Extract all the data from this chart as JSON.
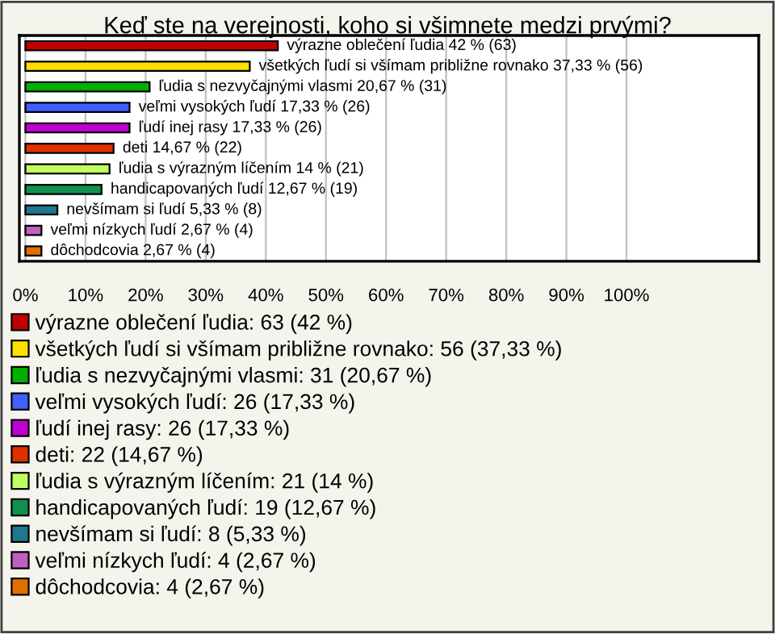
{
  "chart_data": {
    "type": "bar",
    "orientation": "horizontal",
    "title": "Keď ste na verejnosti, koho si všimnete medzi prvými?",
    "categories": [
      null,
      null,
      null,
      null,
      null,
      null,
      null,
      null,
      null,
      null,
      null
    ],
    "xlim": [
      -1,
      122
    ],
    "xticks": [
      {
        "value": 0,
        "label": "0%"
      },
      {
        "value": 10,
        "label": "10%"
      },
      {
        "value": 20,
        "label": "20%"
      },
      {
        "value": 30,
        "label": "30%"
      },
      {
        "value": 40,
        "label": "40%"
      },
      {
        "value": 50,
        "label": "50%"
      },
      {
        "value": 60,
        "label": "60%"
      },
      {
        "value": 70,
        "label": "70%"
      },
      {
        "value": 80,
        "label": "80%"
      },
      {
        "value": 90,
        "label": "90%"
      },
      {
        "value": 100,
        "label": "100%"
      }
    ],
    "grid": "x",
    "legend": "bottom",
    "series": [
      {
        "name": "výrazne oblečení ľudia: 63 (42 %)",
        "color": "#c00000",
        "values": [
          42,
          null,
          null,
          null,
          null,
          null,
          null,
          null,
          null,
          null,
          null
        ],
        "value_labels": [
          "výrazne oblečení ľudia 42 % (63)",
          null,
          null,
          null,
          null,
          null,
          null,
          null,
          null,
          null,
          null
        ]
      },
      {
        "name": "všetkých ľudí si všímam približne rovnako: 56 (37,33 %)",
        "color": "#ffe000",
        "values": [
          null,
          37.33,
          null,
          null,
          null,
          null,
          null,
          null,
          null,
          null,
          null
        ],
        "value_labels": [
          null,
          "všetkých ľudí si všímam približne rovnako 37,33 % (56)",
          null,
          null,
          null,
          null,
          null,
          null,
          null,
          null,
          null
        ]
      },
      {
        "name": "ľudia s nezvyčajnými vlasmi: 31 (20,67 %)",
        "color": "#00b000",
        "values": [
          null,
          null,
          20.67,
          null,
          null,
          null,
          null,
          null,
          null,
          null,
          null
        ],
        "value_labels": [
          null,
          null,
          "ľudia s nezvyčajnými vlasmi 20,67 % (31)",
          null,
          null,
          null,
          null,
          null,
          null,
          null,
          null
        ]
      },
      {
        "name": "veľmi vysokých ľudí: 26 (17,33 %)",
        "color": "#4060ff",
        "values": [
          null,
          null,
          null,
          17.33,
          null,
          null,
          null,
          null,
          null,
          null,
          null
        ],
        "value_labels": [
          null,
          null,
          null,
          "veľmi vysokých ľudí 17,33 % (26)",
          null,
          null,
          null,
          null,
          null,
          null,
          null
        ]
      },
      {
        "name": "ľudí inej rasy: 26 (17,33 %)",
        "color": "#c000d0",
        "values": [
          null,
          null,
          null,
          null,
          17.33,
          null,
          null,
          null,
          null,
          null,
          null
        ],
        "value_labels": [
          null,
          null,
          null,
          null,
          "ľudí inej rasy 17,33 % (26)",
          null,
          null,
          null,
          null,
          null,
          null
        ]
      },
      {
        "name": "deti: 22 (14,67 %)",
        "color": "#e03000",
        "values": [
          null,
          null,
          null,
          null,
          null,
          14.67,
          null,
          null,
          null,
          null,
          null
        ],
        "value_labels": [
          null,
          null,
          null,
          null,
          null,
          "deti 14,67 % (22)",
          null,
          null,
          null,
          null,
          null
        ]
      },
      {
        "name": "ľudia s výrazným líčením: 21 (14 %)",
        "color": "#c0ff60",
        "values": [
          null,
          null,
          null,
          null,
          null,
          null,
          14,
          null,
          null,
          null,
          null
        ],
        "value_labels": [
          null,
          null,
          null,
          null,
          null,
          null,
          "ľudia s výrazným líčením 14 % (21)",
          null,
          null,
          null,
          null
        ]
      },
      {
        "name": "handicapovaných ľudí: 19 (12,67 %)",
        "color": "#109050",
        "values": [
          null,
          null,
          null,
          null,
          null,
          null,
          null,
          12.67,
          null,
          null,
          null
        ],
        "value_labels": [
          null,
          null,
          null,
          null,
          null,
          null,
          null,
          "handicapovaných ľudí 12,67 % (19)",
          null,
          null,
          null
        ]
      },
      {
        "name": "nevšímam si ľudí: 8 (5,33 %)",
        "color": "#207890",
        "values": [
          null,
          null,
          null,
          null,
          null,
          null,
          null,
          null,
          5.33,
          null,
          null
        ],
        "value_labels": [
          null,
          null,
          null,
          null,
          null,
          null,
          null,
          null,
          "nevšímam si ľudí 5,33 % (8)",
          null,
          null
        ]
      },
      {
        "name": "veľmi nízkych ľudí: 4 (2,67 %)",
        "color": "#c060c0",
        "values": [
          null,
          null,
          null,
          null,
          null,
          null,
          null,
          null,
          null,
          2.67,
          null
        ],
        "value_labels": [
          null,
          null,
          null,
          null,
          null,
          null,
          null,
          null,
          null,
          "veľmi nízkych ľudí 2,67 % (4)",
          null
        ]
      },
      {
        "name": "dôchodcovia: 4 (2,67 %)",
        "color": "#e07000",
        "values": [
          null,
          null,
          null,
          null,
          null,
          null,
          null,
          null,
          null,
          null,
          2.67
        ],
        "value_labels": [
          null,
          null,
          null,
          null,
          null,
          null,
          null,
          null,
          null,
          null,
          "dôchodcovia 2,67 % (4)"
        ]
      }
    ]
  }
}
